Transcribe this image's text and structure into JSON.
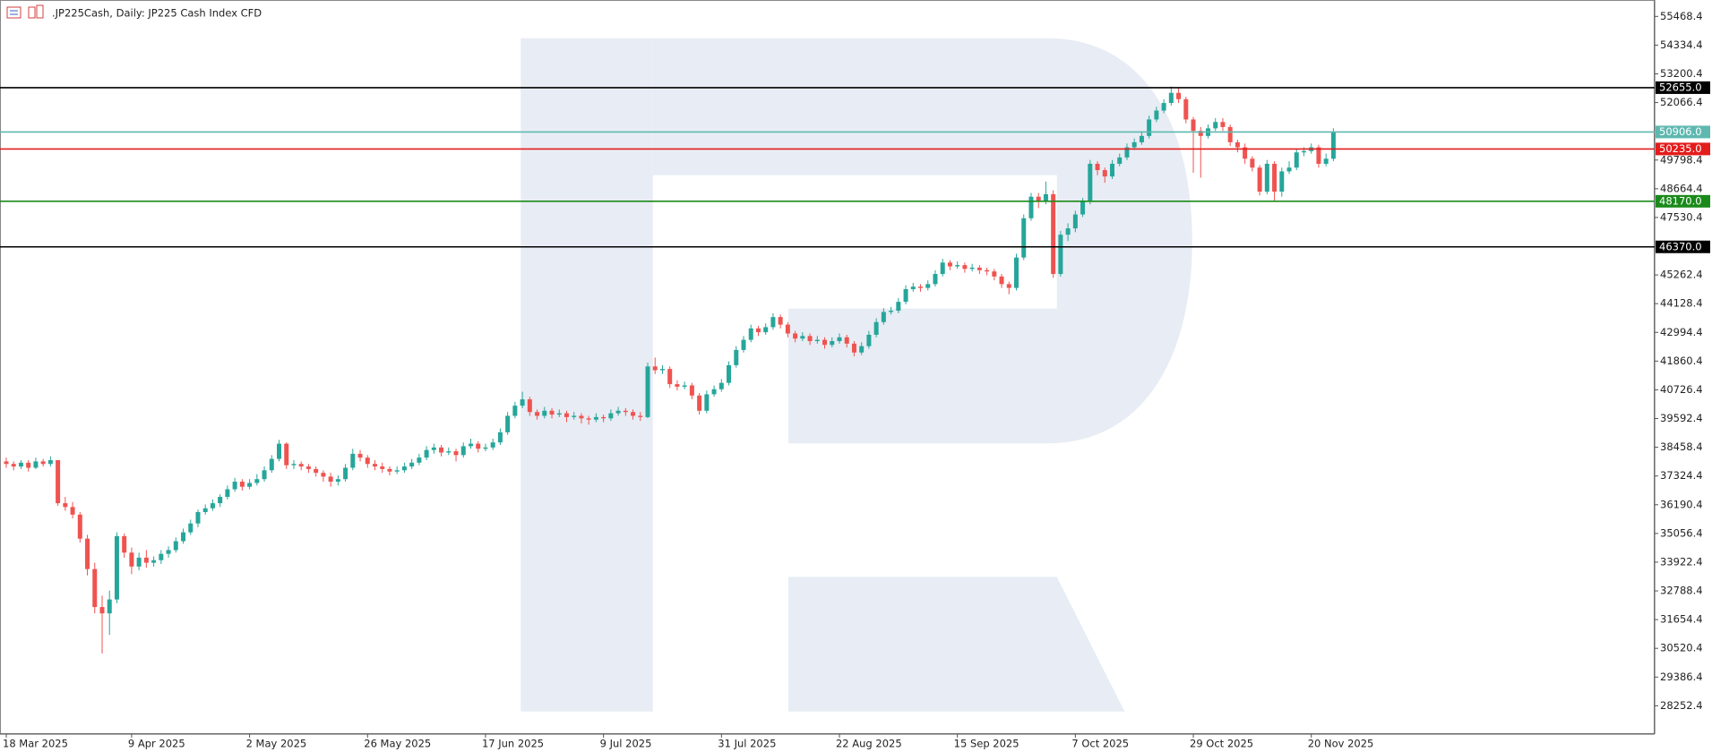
{
  "chart_data": {
    "type": "candlestick",
    "title": ".JP225Cash, Daily:  JP225 Cash Index CFD",
    "up_color": "#26a69a",
    "down_color": "#ef5350",
    "grid": false,
    "ylim": [
      27170,
      56116
    ],
    "yticks": [
      28252.4,
      29386.4,
      30520.4,
      31654.4,
      32788.4,
      33922.4,
      35056.4,
      36190.4,
      37324.4,
      38458.4,
      39592.4,
      40726.4,
      41860.4,
      42994.4,
      44128.4,
      45262.4,
      47530.4,
      48664.4,
      49798.4,
      52066.4,
      53200.4,
      54334.4,
      55468.4
    ],
    "levels": [
      {
        "value": 52655,
        "label": "52655.0",
        "color": "#000000"
      },
      {
        "value": 50906,
        "label": "50906.0",
        "color": "#5fb8b0"
      },
      {
        "value": 50235,
        "label": "50235.0",
        "color": "#e31c1c"
      },
      {
        "value": 48170,
        "label": "48170.0",
        "color": "#1a8a1a"
      },
      {
        "value": 46370,
        "label": "46370.0",
        "color": "#000000"
      }
    ],
    "categories": [
      "18 Mar 2025",
      null,
      null,
      null,
      null,
      null,
      null,
      null,
      null,
      null,
      null,
      null,
      null,
      null,
      null,
      null,
      null,
      "9 Apr 2025",
      null,
      null,
      null,
      null,
      null,
      null,
      null,
      null,
      null,
      null,
      null,
      null,
      null,
      null,
      null,
      "2 May 2025",
      null,
      null,
      null,
      null,
      null,
      null,
      null,
      null,
      null,
      null,
      null,
      null,
      null,
      null,
      null,
      "26 May 2025",
      null,
      null,
      null,
      null,
      null,
      null,
      null,
      null,
      null,
      null,
      null,
      null,
      null,
      null,
      null,
      "17 Jun 2025",
      null,
      null,
      null,
      null,
      null,
      null,
      null,
      null,
      null,
      null,
      null,
      null,
      null,
      null,
      null,
      "9 Jul 2025",
      null,
      null,
      null,
      null,
      null,
      null,
      null,
      null,
      null,
      null,
      null,
      null,
      null,
      null,
      null,
      "31 Jul 2025",
      null,
      null,
      null,
      null,
      null,
      null,
      null,
      null,
      null,
      null,
      null,
      null,
      null,
      null,
      null,
      "22 Aug 2025",
      null,
      null,
      null,
      null,
      null,
      null,
      null,
      null,
      null,
      null,
      null,
      null,
      null,
      null,
      null,
      "15 Sep 2025",
      null,
      null,
      null,
      null,
      null,
      null,
      null,
      null,
      null,
      null,
      null,
      null,
      null,
      null,
      null,
      "7 Oct 2025",
      null,
      null,
      null,
      null,
      null,
      null,
      null,
      null,
      null,
      null,
      null,
      null,
      null,
      null,
      null,
      "29 Oct 2025",
      null,
      null,
      null,
      null,
      null,
      null,
      null,
      null,
      null,
      null,
      null,
      null,
      null,
      null,
      null,
      "20 Nov 2025",
      null,
      null,
      null
    ],
    "ohlc": [
      [
        37900,
        38050,
        37650,
        37800
      ],
      [
        37800,
        37900,
        37550,
        37700
      ],
      [
        37700,
        37950,
        37600,
        37850
      ],
      [
        37850,
        37950,
        37500,
        37650
      ],
      [
        37650,
        38050,
        37600,
        37900
      ],
      [
        37900,
        38000,
        37700,
        37800
      ],
      [
        37800,
        38100,
        37700,
        37950
      ],
      [
        37950,
        37950,
        36150,
        36250
      ],
      [
        36250,
        36500,
        35950,
        36100
      ],
      [
        36100,
        36300,
        35650,
        35800
      ],
      [
        35800,
        35900,
        34700,
        34850
      ],
      [
        34850,
        35000,
        33400,
        33650
      ],
      [
        33650,
        33900,
        31900,
        32150
      ],
      [
        32150,
        32600,
        30320,
        31900
      ],
      [
        31900,
        32800,
        31050,
        32450
      ],
      [
        32450,
        35100,
        32300,
        34950
      ],
      [
        34950,
        35050,
        34100,
        34300
      ],
      [
        34300,
        34500,
        33450,
        33750
      ],
      [
        33750,
        34300,
        33600,
        34100
      ],
      [
        34100,
        34400,
        33700,
        33900
      ],
      [
        33900,
        34150,
        33750,
        34000
      ],
      [
        34000,
        34400,
        33850,
        34250
      ],
      [
        34250,
        34550,
        34100,
        34400
      ],
      [
        34400,
        34900,
        34300,
        34750
      ],
      [
        34750,
        35250,
        34650,
        35100
      ],
      [
        35100,
        35600,
        35000,
        35450
      ],
      [
        35450,
        36000,
        35300,
        35900
      ],
      [
        35900,
        36200,
        35800,
        36050
      ],
      [
        36050,
        36400,
        35950,
        36250
      ],
      [
        36250,
        36600,
        36100,
        36500
      ],
      [
        36500,
        36950,
        36400,
        36800
      ],
      [
        36800,
        37250,
        36700,
        37100
      ],
      [
        37100,
        37200,
        36750,
        36900
      ],
      [
        36900,
        37200,
        36800,
        37050
      ],
      [
        37050,
        37400,
        36950,
        37200
      ],
      [
        37200,
        37700,
        37100,
        37550
      ],
      [
        37550,
        38150,
        37450,
        38000
      ],
      [
        38000,
        38750,
        37900,
        38600
      ],
      [
        38600,
        38650,
        37600,
        37750
      ],
      [
        37750,
        37950,
        37600,
        37800
      ],
      [
        37800,
        37900,
        37550,
        37700
      ],
      [
        37700,
        37800,
        37450,
        37600
      ],
      [
        37600,
        37700,
        37300,
        37450
      ],
      [
        37450,
        37550,
        37100,
        37300
      ],
      [
        37300,
        37450,
        36900,
        37100
      ],
      [
        37100,
        37350,
        36950,
        37200
      ],
      [
        37200,
        37800,
        37100,
        37650
      ],
      [
        37650,
        38400,
        37550,
        38200
      ],
      [
        38200,
        38350,
        37900,
        38050
      ],
      [
        38050,
        38150,
        37650,
        37800
      ],
      [
        37800,
        37950,
        37550,
        37700
      ],
      [
        37700,
        37850,
        37450,
        37600
      ],
      [
        37600,
        37700,
        37350,
        37500
      ],
      [
        37500,
        37700,
        37400,
        37550
      ],
      [
        37550,
        37850,
        37450,
        37700
      ],
      [
        37700,
        38000,
        37600,
        37850
      ],
      [
        37850,
        38200,
        37750,
        38050
      ],
      [
        38050,
        38500,
        37950,
        38350
      ],
      [
        38350,
        38600,
        38200,
        38450
      ],
      [
        38450,
        38550,
        38100,
        38250
      ],
      [
        38250,
        38450,
        38150,
        38300
      ],
      [
        38300,
        38400,
        37900,
        38150
      ],
      [
        38150,
        38650,
        38050,
        38500
      ],
      [
        38500,
        38800,
        38400,
        38600
      ],
      [
        38600,
        38700,
        38250,
        38400
      ],
      [
        38400,
        38600,
        38300,
        38450
      ],
      [
        38450,
        38800,
        38350,
        38650
      ],
      [
        38650,
        39200,
        38550,
        39050
      ],
      [
        39050,
        39850,
        38950,
        39700
      ],
      [
        39700,
        40250,
        39600,
        40100
      ],
      [
        40100,
        40650,
        40000,
        40350
      ],
      [
        40350,
        40450,
        39700,
        39850
      ],
      [
        39850,
        39950,
        39550,
        39700
      ],
      [
        39700,
        40050,
        39600,
        39900
      ],
      [
        39900,
        40000,
        39600,
        39750
      ],
      [
        39750,
        39950,
        39650,
        39800
      ],
      [
        39800,
        39900,
        39450,
        39650
      ],
      [
        39650,
        39850,
        39550,
        39700
      ],
      [
        39700,
        39800,
        39400,
        39600
      ],
      [
        39600,
        39700,
        39350,
        39550
      ],
      [
        39550,
        39800,
        39450,
        39650
      ],
      [
        39650,
        39750,
        39450,
        39600
      ],
      [
        39600,
        39950,
        39500,
        39800
      ],
      [
        39800,
        40050,
        39700,
        39900
      ],
      [
        39900,
        40000,
        39700,
        39850
      ],
      [
        39850,
        39950,
        39550,
        39700
      ],
      [
        39700,
        39850,
        39500,
        39650
      ],
      [
        39650,
        41800,
        39600,
        41650
      ],
      [
        41650,
        42000,
        41350,
        41500
      ],
      [
        41500,
        41700,
        41350,
        41550
      ],
      [
        41550,
        41650,
        40800,
        40950
      ],
      [
        40950,
        41100,
        40700,
        40850
      ],
      [
        40850,
        41050,
        40750,
        40900
      ],
      [
        40900,
        41000,
        40350,
        40500
      ],
      [
        40500,
        40600,
        39750,
        39900
      ],
      [
        39900,
        40700,
        39800,
        40550
      ],
      [
        40550,
        40900,
        40450,
        40750
      ],
      [
        40750,
        41150,
        40650,
        41000
      ],
      [
        41000,
        41850,
        40900,
        41700
      ],
      [
        41700,
        42450,
        41600,
        42300
      ],
      [
        42300,
        42850,
        42200,
        42700
      ],
      [
        42700,
        43300,
        42600,
        43150
      ],
      [
        43150,
        43250,
        42850,
        43000
      ],
      [
        43000,
        43350,
        42900,
        43200
      ],
      [
        43200,
        43750,
        43100,
        43600
      ],
      [
        43600,
        43700,
        43150,
        43300
      ],
      [
        43300,
        43400,
        42800,
        42950
      ],
      [
        42950,
        43050,
        42600,
        42750
      ],
      [
        42750,
        43000,
        42650,
        42850
      ],
      [
        42850,
        42950,
        42500,
        42650
      ],
      [
        42650,
        42850,
        42550,
        42700
      ],
      [
        42700,
        42800,
        42350,
        42500
      ],
      [
        42500,
        42800,
        42400,
        42650
      ],
      [
        42650,
        42950,
        42550,
        42800
      ],
      [
        42800,
        42900,
        42400,
        42550
      ],
      [
        42550,
        42650,
        42050,
        42200
      ],
      [
        42200,
        42600,
        42100,
        42450
      ],
      [
        42450,
        43050,
        42350,
        42900
      ],
      [
        42900,
        43550,
        42800,
        43400
      ],
      [
        43400,
        43950,
        43300,
        43800
      ],
      [
        43800,
        44000,
        43700,
        43850
      ],
      [
        43850,
        44350,
        43750,
        44200
      ],
      [
        44200,
        44850,
        44100,
        44700
      ],
      [
        44700,
        44950,
        44600,
        44800
      ],
      [
        44800,
        44900,
        44600,
        44750
      ],
      [
        44750,
        45050,
        44650,
        44900
      ],
      [
        44900,
        45450,
        44800,
        45300
      ],
      [
        45300,
        45900,
        45200,
        45750
      ],
      [
        45750,
        45850,
        45450,
        45600
      ],
      [
        45600,
        45800,
        45500,
        45650
      ],
      [
        45650,
        45750,
        45350,
        45500
      ],
      [
        45500,
        45700,
        45400,
        45550
      ],
      [
        45550,
        45650,
        45300,
        45450
      ],
      [
        45450,
        45550,
        45250,
        45400
      ],
      [
        45400,
        45500,
        45050,
        45200
      ],
      [
        45200,
        45300,
        44750,
        44900
      ],
      [
        44900,
        45000,
        44500,
        44750
      ],
      [
        44750,
        46100,
        44650,
        45950
      ],
      [
        45950,
        47650,
        45850,
        47500
      ],
      [
        47500,
        48500,
        47400,
        48350
      ],
      [
        48350,
        48500,
        47900,
        48150
      ],
      [
        48150,
        48950,
        48050,
        48450
      ],
      [
        48450,
        48600,
        45150,
        45300
      ],
      [
        45300,
        47000,
        45200,
        46850
      ],
      [
        46850,
        47300,
        46600,
        47100
      ],
      [
        47100,
        47800,
        46950,
        47650
      ],
      [
        47650,
        48300,
        47550,
        48150
      ],
      [
        48150,
        49800,
        48050,
        49650
      ],
      [
        49650,
        49750,
        49200,
        49400
      ],
      [
        49400,
        49500,
        48900,
        49150
      ],
      [
        49150,
        49800,
        49050,
        49650
      ],
      [
        49650,
        50050,
        49550,
        49900
      ],
      [
        49900,
        50450,
        49800,
        50300
      ],
      [
        50300,
        50650,
        50200,
        50500
      ],
      [
        50500,
        50900,
        50400,
        50750
      ],
      [
        50750,
        51550,
        50650,
        51400
      ],
      [
        51400,
        51900,
        51300,
        51750
      ],
      [
        51750,
        52200,
        51650,
        52050
      ],
      [
        52050,
        52700,
        51950,
        52450
      ],
      [
        52450,
        52650,
        52050,
        52200
      ],
      [
        52200,
        52300,
        51250,
        51400
      ],
      [
        51400,
        51500,
        49300,
        50950
      ],
      [
        50950,
        51100,
        49100,
        50750
      ],
      [
        50750,
        51200,
        50650,
        51050
      ],
      [
        51050,
        51450,
        50950,
        51300
      ],
      [
        51300,
        51450,
        50950,
        51100
      ],
      [
        51100,
        51200,
        50350,
        50500
      ],
      [
        50500,
        50600,
        50100,
        50300
      ],
      [
        50300,
        50450,
        49650,
        49850
      ],
      [
        49850,
        49950,
        49350,
        49500
      ],
      [
        49500,
        49600,
        48400,
        48550
      ],
      [
        48550,
        49800,
        48450,
        49650
      ],
      [
        49650,
        49750,
        48200,
        48550
      ],
      [
        48550,
        49500,
        48350,
        49350
      ],
      [
        49350,
        49750,
        49250,
        49500
      ],
      [
        49500,
        50250,
        49400,
        50100
      ],
      [
        50100,
        50300,
        49950,
        50150
      ],
      [
        50150,
        50450,
        50050,
        50300
      ],
      [
        50300,
        50400,
        49500,
        49650
      ],
      [
        49650,
        50050,
        49550,
        49850
      ],
      [
        49850,
        51050,
        49750,
        50906
      ]
    ]
  }
}
